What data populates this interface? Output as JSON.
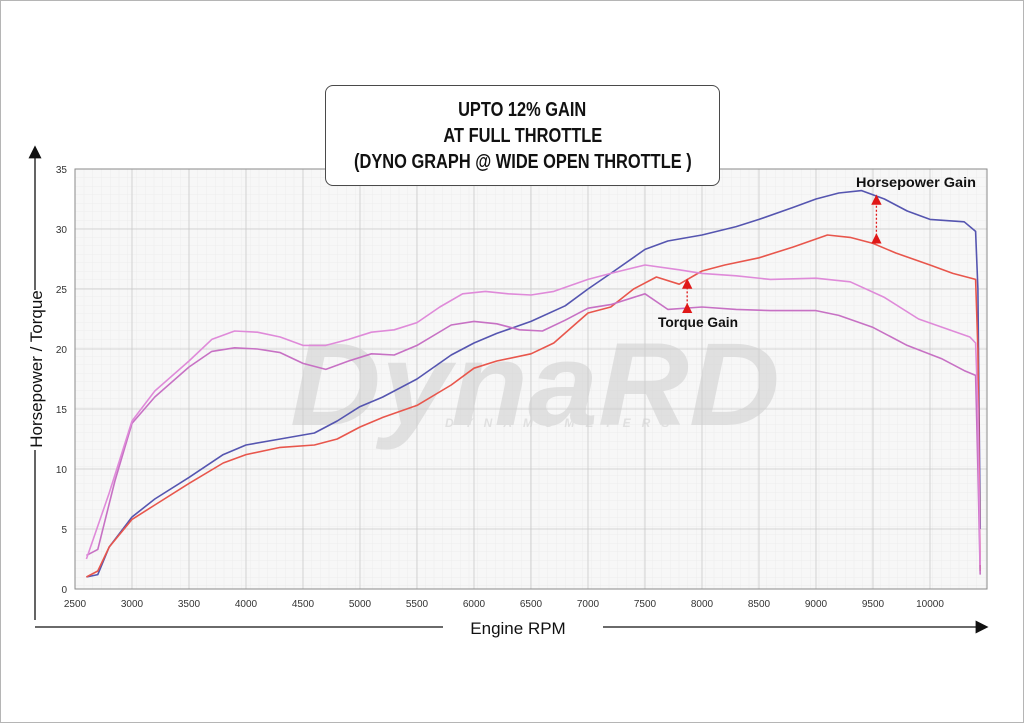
{
  "title_lines": [
    "UPTO 12% GAIN",
    "AT FULL THROTTLE",
    "(DYNO GRAPH @ WIDE OPEN THROTTLE )"
  ],
  "watermark": {
    "brand": "DynaRD",
    "sub": "DYNAMOMETERS"
  },
  "annotations": {
    "hp_gain": "Horsepower Gain",
    "torque_gain": "Torque Gain"
  },
  "chart_data": {
    "type": "line",
    "xlabel": "Engine RPM",
    "ylabel": "Horsepower / Torque",
    "xlim": [
      2500,
      10500
    ],
    "ylim": [
      0,
      35
    ],
    "xticks": [
      2500,
      3000,
      3500,
      4000,
      4500,
      5000,
      5500,
      6000,
      6500,
      7000,
      7500,
      8000,
      8500,
      9000,
      9500,
      10000
    ],
    "yticks": [
      0,
      5,
      10,
      15,
      20,
      25,
      30,
      35
    ],
    "grid": true,
    "series": [
      {
        "color": "#5555b0",
        "points": [
          [
            2600,
            1.0
          ],
          [
            2700,
            1.2
          ],
          [
            2800,
            3.5
          ],
          [
            3000,
            6.0
          ],
          [
            3200,
            7.5
          ],
          [
            3500,
            9.3
          ],
          [
            3800,
            11.2
          ],
          [
            4000,
            12.0
          ],
          [
            4300,
            12.5
          ],
          [
            4600,
            13.0
          ],
          [
            4800,
            14.0
          ],
          [
            5000,
            15.2
          ],
          [
            5200,
            16.0
          ],
          [
            5500,
            17.5
          ],
          [
            5800,
            19.5
          ],
          [
            6000,
            20.5
          ],
          [
            6200,
            21.3
          ],
          [
            6500,
            22.3
          ],
          [
            6800,
            23.6
          ],
          [
            7000,
            25.0
          ],
          [
            7200,
            26.3
          ],
          [
            7500,
            28.3
          ],
          [
            7700,
            29.0
          ],
          [
            8000,
            29.5
          ],
          [
            8300,
            30.2
          ],
          [
            8500,
            30.8
          ],
          [
            8800,
            31.8
          ],
          [
            9000,
            32.5
          ],
          [
            9200,
            33.0
          ],
          [
            9400,
            33.2
          ],
          [
            9600,
            32.5
          ],
          [
            9800,
            31.5
          ],
          [
            10000,
            30.8
          ],
          [
            10300,
            30.6
          ],
          [
            10400,
            29.8
          ],
          [
            10420,
            25.0
          ],
          [
            10440,
            5.0
          ]
        ]
      },
      {
        "color": "#e8564c",
        "points": [
          [
            2600,
            1.0
          ],
          [
            2700,
            1.5
          ],
          [
            2800,
            3.5
          ],
          [
            3000,
            5.8
          ],
          [
            3200,
            7.0
          ],
          [
            3500,
            8.8
          ],
          [
            3800,
            10.5
          ],
          [
            4000,
            11.2
          ],
          [
            4300,
            11.8
          ],
          [
            4600,
            12.0
          ],
          [
            4800,
            12.5
          ],
          [
            5000,
            13.5
          ],
          [
            5200,
            14.3
          ],
          [
            5500,
            15.3
          ],
          [
            5800,
            17.0
          ],
          [
            6000,
            18.4
          ],
          [
            6200,
            19.0
          ],
          [
            6500,
            19.6
          ],
          [
            6700,
            20.5
          ],
          [
            7000,
            23.0
          ],
          [
            7200,
            23.5
          ],
          [
            7400,
            25.0
          ],
          [
            7600,
            26.0
          ],
          [
            7800,
            25.4
          ],
          [
            8000,
            26.5
          ],
          [
            8200,
            27.0
          ],
          [
            8500,
            27.6
          ],
          [
            8800,
            28.5
          ],
          [
            9100,
            29.5
          ],
          [
            9300,
            29.3
          ],
          [
            9500,
            28.8
          ],
          [
            9700,
            28.0
          ],
          [
            10000,
            27.0
          ],
          [
            10200,
            26.3
          ],
          [
            10400,
            25.8
          ],
          [
            10420,
            20.0
          ],
          [
            10440,
            1.5
          ]
        ]
      },
      {
        "color": "#c771c4",
        "points": [
          [
            2600,
            2.8
          ],
          [
            2700,
            3.3
          ],
          [
            2850,
            9.0
          ],
          [
            3000,
            13.8
          ],
          [
            3200,
            16.0
          ],
          [
            3500,
            18.5
          ],
          [
            3700,
            19.8
          ],
          [
            3900,
            20.1
          ],
          [
            4100,
            20.0
          ],
          [
            4300,
            19.7
          ],
          [
            4500,
            18.8
          ],
          [
            4700,
            18.3
          ],
          [
            4900,
            19.0
          ],
          [
            5100,
            19.6
          ],
          [
            5300,
            19.5
          ],
          [
            5500,
            20.3
          ],
          [
            5800,
            22.0
          ],
          [
            6000,
            22.3
          ],
          [
            6200,
            22.1
          ],
          [
            6400,
            21.6
          ],
          [
            6600,
            21.5
          ],
          [
            6800,
            22.4
          ],
          [
            7000,
            23.4
          ],
          [
            7200,
            23.7
          ],
          [
            7500,
            24.6
          ],
          [
            7700,
            23.3
          ],
          [
            8000,
            23.5
          ],
          [
            8300,
            23.3
          ],
          [
            8600,
            23.2
          ],
          [
            9000,
            23.2
          ],
          [
            9200,
            22.8
          ],
          [
            9500,
            21.8
          ],
          [
            9800,
            20.3
          ],
          [
            10100,
            19.2
          ],
          [
            10300,
            18.2
          ],
          [
            10400,
            17.8
          ],
          [
            10420,
            10.0
          ],
          [
            10440,
            1.2
          ]
        ]
      },
      {
        "color": "#df8ad9",
        "points": [
          [
            2600,
            2.5
          ],
          [
            2800,
            8.0
          ],
          [
            3000,
            14.0
          ],
          [
            3200,
            16.5
          ],
          [
            3500,
            19.0
          ],
          [
            3700,
            20.8
          ],
          [
            3900,
            21.5
          ],
          [
            4100,
            21.4
          ],
          [
            4300,
            21.0
          ],
          [
            4500,
            20.3
          ],
          [
            4700,
            20.3
          ],
          [
            4900,
            20.8
          ],
          [
            5100,
            21.4
          ],
          [
            5300,
            21.6
          ],
          [
            5500,
            22.2
          ],
          [
            5700,
            23.5
          ],
          [
            5900,
            24.6
          ],
          [
            6100,
            24.8
          ],
          [
            6300,
            24.6
          ],
          [
            6500,
            24.5
          ],
          [
            6700,
            24.8
          ],
          [
            7000,
            25.8
          ],
          [
            7200,
            26.3
          ],
          [
            7500,
            27.0
          ],
          [
            7800,
            26.6
          ],
          [
            8000,
            26.3
          ],
          [
            8300,
            26.1
          ],
          [
            8600,
            25.8
          ],
          [
            9000,
            25.9
          ],
          [
            9300,
            25.6
          ],
          [
            9600,
            24.3
          ],
          [
            9900,
            22.5
          ],
          [
            10200,
            21.5
          ],
          [
            10350,
            21.0
          ],
          [
            10400,
            20.5
          ],
          [
            10420,
            15.0
          ],
          [
            10440,
            2.0
          ]
        ]
      }
    ],
    "gain_markers": [
      {
        "label": "Horsepower Gain",
        "x": 9530,
        "y_top": 33.0,
        "y_bottom": 29.1
      },
      {
        "label": "Torque Gain",
        "x": 7870,
        "y_top": 26.0,
        "y_bottom": 23.3
      }
    ]
  }
}
